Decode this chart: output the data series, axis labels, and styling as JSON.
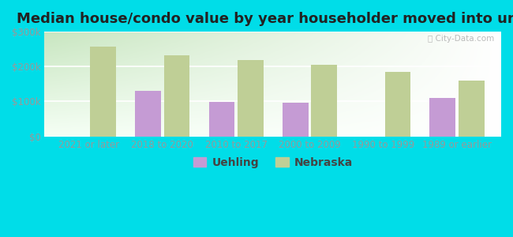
{
  "title": "Median house/condo value by year householder moved into unit",
  "categories": [
    "2021 or later",
    "2018 to 2020",
    "2010 to 2017",
    "2000 to 2009",
    "1990 to 1999",
    "1989 or earlier"
  ],
  "uehling_values": [
    0,
    130000,
    98000,
    97000,
    0,
    109000
  ],
  "nebraska_values": [
    258000,
    232000,
    218000,
    204000,
    185000,
    160000
  ],
  "uehling_color": "#c59bd4",
  "nebraska_color": "#bfcf96",
  "bar_width": 0.35,
  "ylim": [
    0,
    300000
  ],
  "ytick_labels": [
    "$0",
    "$100k",
    "$200k",
    "$300k"
  ],
  "ytick_values": [
    0,
    100000,
    200000,
    300000
  ],
  "outer_bg": "#00dde8",
  "grad_top": "#c8e6c0",
  "grad_bottom": "#f0faf0",
  "title_fontsize": 13,
  "tick_fontsize": 8.5,
  "legend_fontsize": 10,
  "watermark": "ⓘ City-Data.com",
  "grid_color": "#ffffff",
  "tick_color": "#999999"
}
